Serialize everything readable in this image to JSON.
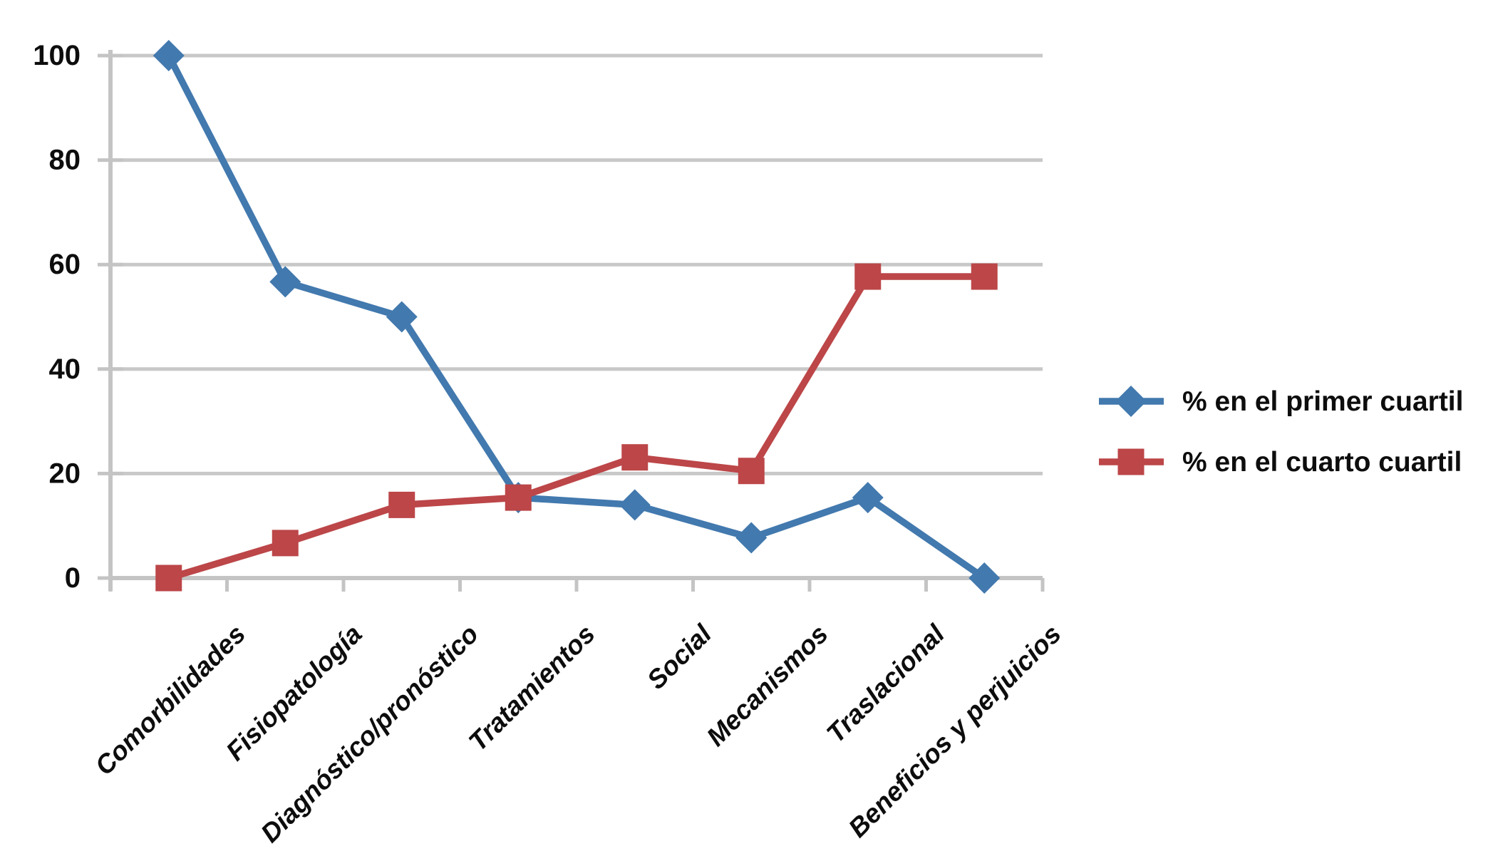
{
  "figure": {
    "background": "#ffffff"
  },
  "chart_data": {
    "type": "line",
    "categories": [
      "Comorbilidades",
      "Fisiopatología",
      "Diagnóstico/pronóstico",
      "Tratamientos",
      "Social",
      "Mecanismos",
      "Traslacional",
      "Beneficios y perjuicios"
    ],
    "series": [
      {
        "name": "% en el primer cuartil",
        "color": "#4279AE",
        "marker": "diamond",
        "values": [
          100,
          56.7,
          50,
          15.4,
          14,
          7.7,
          15.4,
          0
        ]
      },
      {
        "name": "% en el cuarto cuartil",
        "color": "#BC4648",
        "marker": "square",
        "values": [
          0,
          6.7,
          14,
          15.4,
          23.1,
          20.5,
          57.7,
          57.7
        ]
      }
    ],
    "ylim": [
      0,
      100
    ],
    "yticks": [
      0,
      20,
      40,
      60,
      80,
      100
    ],
    "grid": true,
    "gridline_color": "#C8C8C8",
    "axis_color": "#C4C4C4",
    "tick_label_color": "#0d0d0d",
    "legend_position": "right"
  }
}
